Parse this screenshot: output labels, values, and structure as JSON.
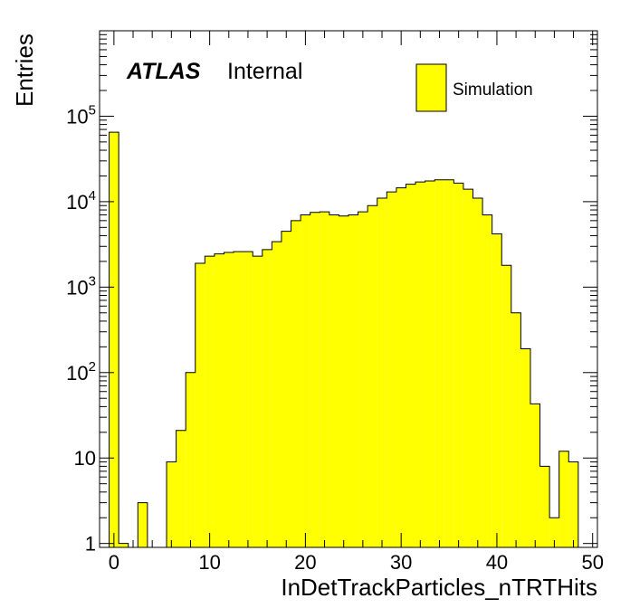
{
  "chart_data": {
    "type": "bar",
    "title": "",
    "xlabel": "InDetTrackParticles_nTRTHits",
    "ylabel": "Entries",
    "yscale": "log",
    "xlim": [
      -1.5,
      50.5
    ],
    "ylim": [
      0.9,
      1000000
    ],
    "xticks": [
      0,
      10,
      20,
      30,
      40,
      50
    ],
    "yticks": [
      {
        "value": 1,
        "base": "1",
        "exp": ""
      },
      {
        "value": 10,
        "base": "10",
        "exp": ""
      },
      {
        "value": 100,
        "base": "10",
        "exp": "2"
      },
      {
        "value": 1000,
        "base": "10",
        "exp": "3"
      },
      {
        "value": 10000,
        "base": "10",
        "exp": "4"
      },
      {
        "value": 100000,
        "base": "10",
        "exp": "5"
      }
    ],
    "bins": {
      "low_edges": [
        -0.5,
        0.5,
        1.5,
        2.5,
        3.5,
        4.5,
        5.5,
        6.5,
        7.5,
        8.5,
        9.5,
        10.5,
        11.5,
        12.5,
        13.5,
        14.5,
        15.5,
        16.5,
        17.5,
        18.5,
        19.5,
        20.5,
        21.5,
        22.5,
        23.5,
        24.5,
        25.5,
        26.5,
        27.5,
        28.5,
        29.5,
        30.5,
        31.5,
        32.5,
        33.5,
        34.5,
        35.5,
        36.5,
        37.5,
        38.5,
        39.5,
        40.5,
        41.5,
        42.5,
        43.5,
        44.5,
        45.5,
        46.5,
        47.5,
        48.5
      ],
      "width": 1,
      "values": [
        65000,
        1,
        0,
        3,
        0,
        0,
        9,
        21,
        100,
        1900,
        2300,
        2450,
        2550,
        2600,
        2600,
        2300,
        2750,
        3400,
        4500,
        6000,
        7000,
        7500,
        7600,
        7000,
        6800,
        7000,
        7600,
        9000,
        11000,
        13000,
        14500,
        16000,
        17000,
        17500,
        18000,
        18000,
        16500,
        14000,
        11000,
        7000,
        4200,
        1800,
        500,
        190,
        43,
        8,
        2,
        12,
        9,
        0
      ]
    },
    "series": [
      {
        "name": "Simulation",
        "color": "#ffff00",
        "edge_color": "#000000"
      }
    ],
    "legend_position": "top-right"
  },
  "labels": {
    "atlas": "ATLAS",
    "internal": "Internal"
  }
}
